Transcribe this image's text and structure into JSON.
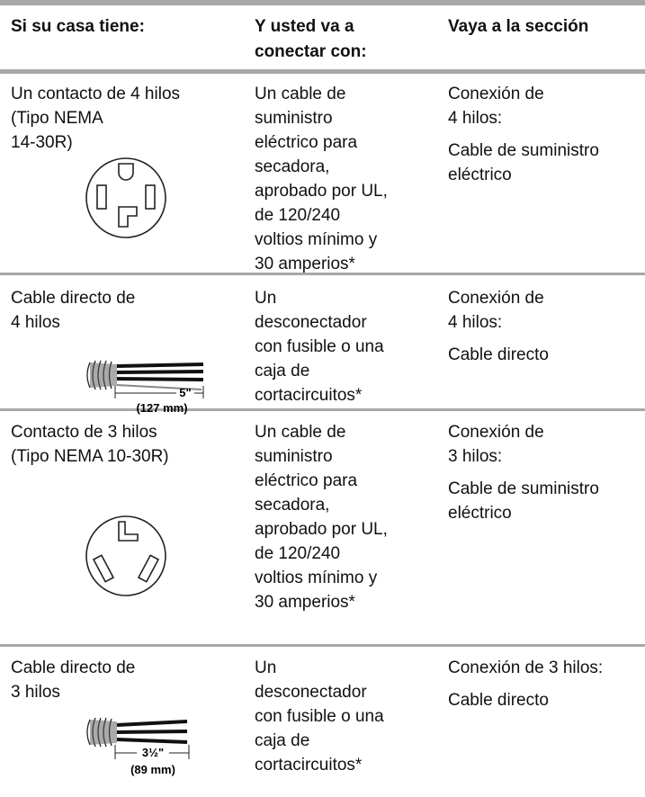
{
  "header": [
    [
      "Si su casa tiene:"
    ],
    [
      "Y usted va a",
      "conectar con:"
    ],
    [
      "Vaya a la sección"
    ]
  ],
  "rows": [
    {
      "has": [
        "Un contacto de 4 hilos",
        "(Tipo NEMA",
        "14-30R)"
      ],
      "connect": [
        "Un cable de",
        "suministro",
        "eléctrico para",
        "secadora,",
        "aprobado por UL,",
        "de 120/240",
        "voltios mínimo y",
        "30 amperios*"
      ],
      "section": [
        [
          "Conexión de",
          "4 hilos:"
        ],
        [
          "Cable de suministro",
          "eléctrico"
        ]
      ]
    },
    {
      "has": [
        "Cable directo de",
        "4 hilos"
      ],
      "figure_labels": [
        "5\"",
        "(127 mm)"
      ],
      "connect": [
        "Un",
        "desconectador",
        "con fusible o una",
        "caja de",
        "cortacircuitos*"
      ],
      "section": [
        [
          "Conexión de",
          "4 hilos:"
        ],
        [
          "Cable directo"
        ]
      ]
    },
    {
      "has": [
        "Contacto de 3 hilos",
        "(Tipo NEMA 10-30R)"
      ],
      "connect": [
        "Un cable de",
        "suministro",
        "eléctrico para",
        "secadora,",
        "aprobado por UL,",
        "de 120/240",
        "voltios mínimo y",
        "30 amperios*"
      ],
      "section": [
        [
          "Conexión de",
          "3 hilos:"
        ],
        [
          "Cable de suministro",
          "eléctrico"
        ]
      ]
    },
    {
      "has": [
        "Cable directo de",
        "3 hilos"
      ],
      "figure_labels": [
        "3½\"",
        "(89 mm)"
      ],
      "connect": [
        "Un",
        "desconectador",
        "con fusible o una",
        "caja de",
        "cortacircuitos*"
      ],
      "section": [
        [
          "Conexión de 3 hilos:"
        ],
        [
          "Cable directo"
        ]
      ]
    }
  ]
}
